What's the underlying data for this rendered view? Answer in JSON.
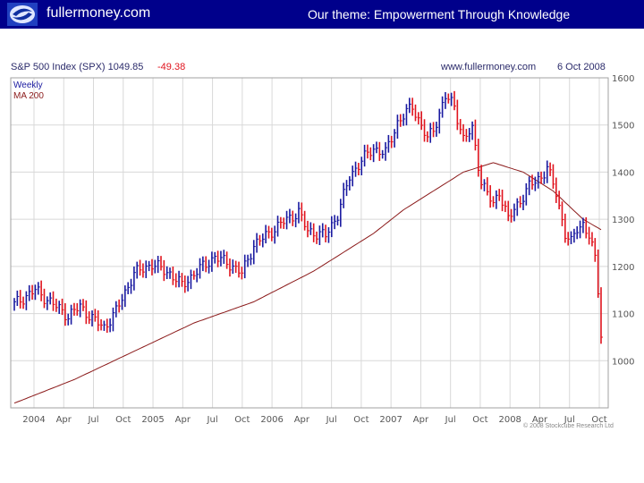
{
  "header": {
    "site_name": "fullermoney.com",
    "theme": "Our theme: Empowerment Through Knowledge"
  },
  "colors": {
    "header_bg": "#00008b",
    "up_bar": "#1a1aa0",
    "down_bar": "#e0141e",
    "ma_line": "#8b1a1a",
    "grid": "#d8d8d8"
  },
  "chart_data": {
    "type": "line",
    "title_left": "S&P 500 Index (SPX) 1049.85",
    "title_change": "-49.38",
    "source": "www.fullermoney.com",
    "date": "6 Oct 2008",
    "legend": [
      "Weekly",
      "MA 200"
    ],
    "yticks": [
      1000,
      1100,
      1200,
      1300,
      1400,
      1500,
      1600
    ],
    "ylim": [
      900,
      1600
    ],
    "xticks": [
      "2004",
      "Apr",
      "Jul",
      "Oct",
      "2005",
      "Apr",
      "Jul",
      "Oct",
      "2006",
      "Apr",
      "Jul",
      "Oct",
      "2007",
      "Apr",
      "Jul",
      "Oct",
      "2008",
      "Apr",
      "Jul",
      "Oct"
    ],
    "copyright": "© 2008 Stockcube Research Ltd",
    "grid": true,
    "series": [
      {
        "name": "Weekly",
        "style": "bars",
        "anchors": [
          [
            0,
            1120
          ],
          [
            7,
            1150
          ],
          [
            12,
            1125
          ],
          [
            18,
            1095
          ],
          [
            22,
            1115
          ],
          [
            26,
            1090
          ],
          [
            30,
            1070
          ],
          [
            34,
            1105
          ],
          [
            40,
            1185
          ],
          [
            46,
            1205
          ],
          [
            52,
            1185
          ],
          [
            56,
            1160
          ],
          [
            62,
            1195
          ],
          [
            67,
            1220
          ],
          [
            72,
            1205
          ],
          [
            76,
            1185
          ],
          [
            80,
            1245
          ],
          [
            85,
            1270
          ],
          [
            90,
            1295
          ],
          [
            95,
            1315
          ],
          [
            98,
            1275
          ],
          [
            104,
            1265
          ],
          [
            108,
            1310
          ],
          [
            112,
            1390
          ],
          [
            116,
            1425
          ],
          [
            120,
            1450
          ],
          [
            124,
            1440
          ],
          [
            128,
            1505
          ],
          [
            133,
            1540
          ],
          [
            138,
            1470
          ],
          [
            140,
            1490
          ],
          [
            144,
            1560
          ],
          [
            147,
            1540
          ],
          [
            150,
            1470
          ],
          [
            153,
            1490
          ],
          [
            156,
            1380
          ],
          [
            160,
            1330
          ],
          [
            162,
            1360
          ],
          [
            165,
            1300
          ],
          [
            168,
            1330
          ],
          [
            172,
            1370
          ],
          [
            176,
            1390
          ],
          [
            178,
            1410
          ],
          [
            181,
            1355
          ],
          [
            184,
            1270
          ],
          [
            186,
            1250
          ],
          [
            188,
            1280
          ],
          [
            190,
            1290
          ],
          [
            192,
            1265
          ],
          [
            194,
            1215
          ],
          [
            195,
            1150
          ],
          [
            196,
            1100
          ],
          [
            196.8,
            1050
          ]
        ],
        "last": 1049.85,
        "change": -49.38
      },
      {
        "name": "MA 200",
        "style": "line",
        "anchors": [
          [
            0,
            910
          ],
          [
            20,
            960
          ],
          [
            40,
            1020
          ],
          [
            60,
            1080
          ],
          [
            80,
            1125
          ],
          [
            100,
            1190
          ],
          [
            120,
            1270
          ],
          [
            130,
            1320
          ],
          [
            140,
            1360
          ],
          [
            150,
            1400
          ],
          [
            160,
            1420
          ],
          [
            170,
            1400
          ],
          [
            180,
            1360
          ],
          [
            190,
            1300
          ],
          [
            196.8,
            1275
          ]
        ]
      }
    ]
  }
}
